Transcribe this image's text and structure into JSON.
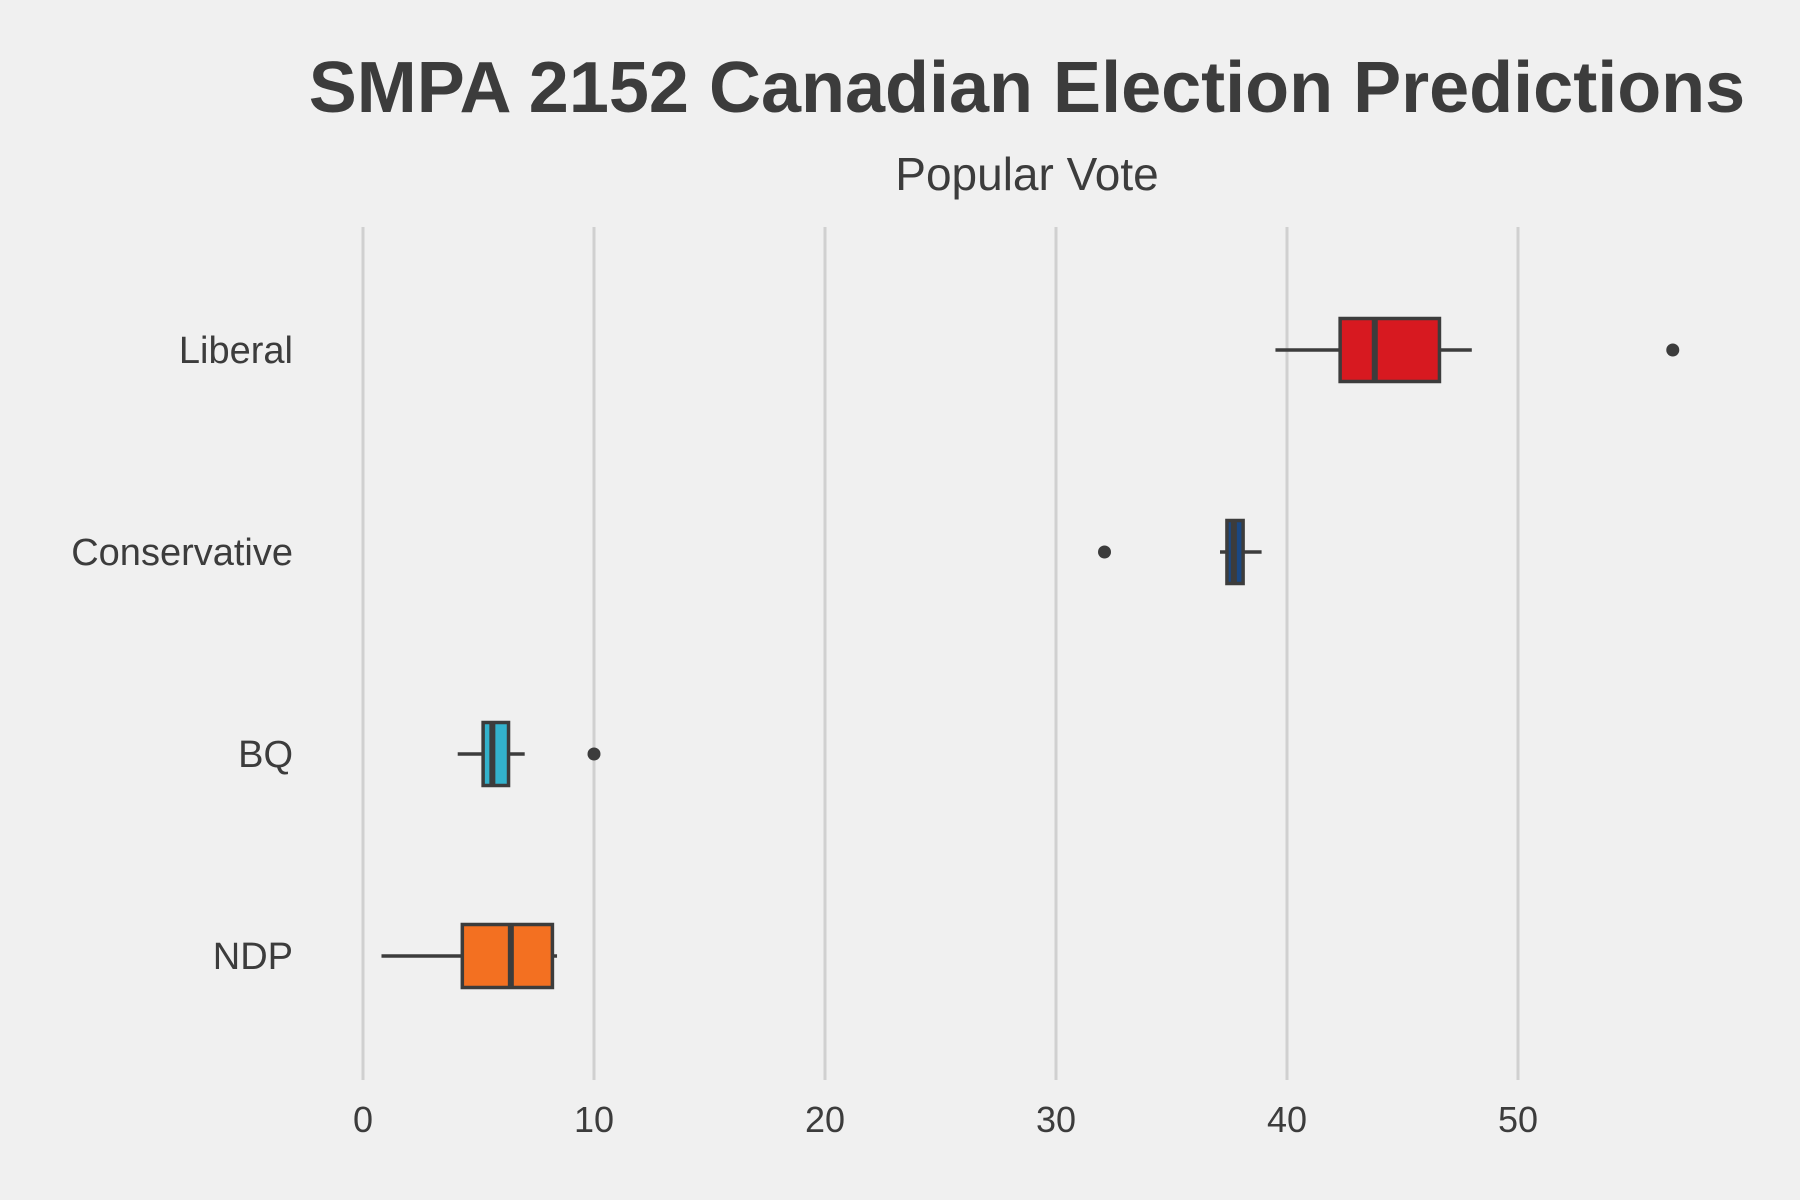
{
  "chart_data": {
    "type": "box",
    "title": "SMPA 2152 Canadian Election Predictions",
    "subtitle": "Popular Vote",
    "xlabel": "",
    "ylabel": "",
    "xlim": [
      -1.5,
      61
    ],
    "x_ticks": [
      0,
      10,
      20,
      30,
      40,
      50
    ],
    "grid": "vertical",
    "legend": "none",
    "categories": [
      "Liberal",
      "Conservative",
      "BQ",
      "NDP"
    ],
    "series": [
      {
        "category": "Liberal",
        "color": "#d71920",
        "whisker_low": 39.5,
        "q1": 42.3,
        "median": 43.8,
        "q3": 46.6,
        "whisker_high": 48,
        "outliers": [
          56.7
        ]
      },
      {
        "category": "Conservative",
        "color": "#1a4782",
        "whisker_low": 37.1,
        "q1": 37.4,
        "median": 37.7,
        "q3": 38.1,
        "whisker_high": 38.9,
        "outliers": [
          32.1
        ]
      },
      {
        "category": "BQ",
        "color": "#33b2cc",
        "whisker_low": 4.1,
        "q1": 5.2,
        "median": 5.6,
        "q3": 6.3,
        "whisker_high": 7,
        "outliers": [
          10
        ]
      },
      {
        "category": "NDP",
        "color": "#f37021",
        "whisker_low": 0.8,
        "q1": 4.3,
        "median": 6.4,
        "q3": 8.2,
        "whisker_high": 8.4,
        "outliers": []
      }
    ]
  }
}
